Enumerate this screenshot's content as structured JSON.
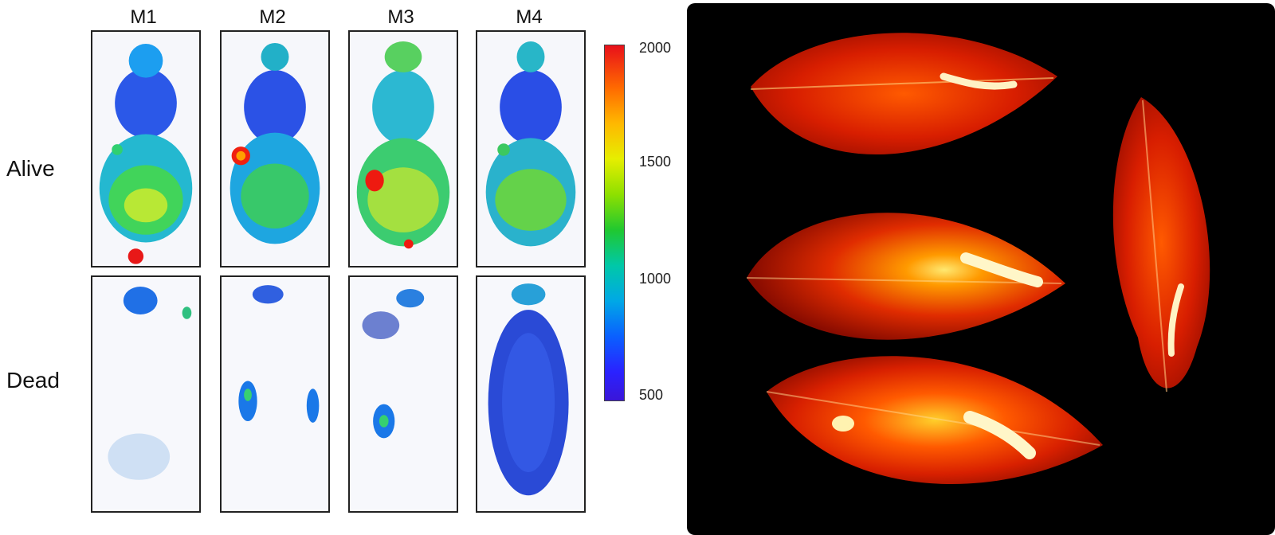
{
  "columns": [
    "M1",
    "M2",
    "M3",
    "M4"
  ],
  "rows": [
    "Alive",
    "Dead"
  ],
  "colorbar": {
    "ticks": [
      "2000",
      "1500",
      "1000",
      "500"
    ],
    "range": [
      500,
      2000
    ],
    "colors": [
      "#e8101a",
      "#ffb800",
      "#20c830",
      "#00a8e6",
      "#3a16d8"
    ]
  },
  "figure": {
    "left_panel_bg": "#ffffff",
    "right_panel_bg": "#000000",
    "leaf_colors": [
      "#c81800",
      "#ff4a00",
      "#ffe66b"
    ]
  }
}
